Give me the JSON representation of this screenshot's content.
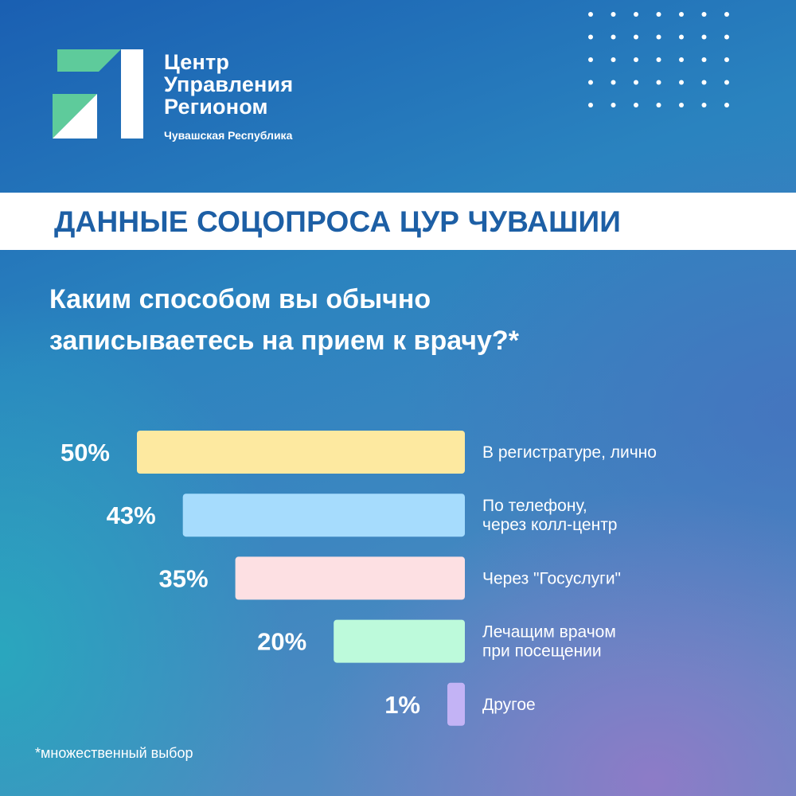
{
  "brand": {
    "line1": "Центр",
    "line2": "Управления",
    "line3": "Регионом",
    "subtitle": "Чувашская Республика"
  },
  "banner": {
    "title": "ДАННЫЕ СОЦОПРОСА ЦУР ЧУВАШИИ"
  },
  "question": {
    "line1": "Каким способом вы обычно",
    "line2": "записываетесь на прием к врачу?*"
  },
  "footnote": "*множественный выбор",
  "colors": {
    "logo_green": "#5ecb9b",
    "banner_text": "#1d5fa5",
    "bar_yellow": "#fde9a0",
    "bar_blue": "#a6dcfd",
    "bar_pink": "#fde0e3",
    "bar_mint": "#bdfadb",
    "bar_violet": "#c3b3f5"
  },
  "chart_data": {
    "type": "bar",
    "orientation": "horizontal",
    "unit": "%",
    "categories": [
      [
        "В регистратуре, лично"
      ],
      [
        "По телефону,",
        "через колл-центр"
      ],
      [
        "Через \"Госуслуги\""
      ],
      [
        "Лечащим врачом",
        "при посещении"
      ],
      [
        "Другое"
      ]
    ],
    "values": [
      50,
      43,
      35,
      20,
      1
    ],
    "value_labels": [
      "50%",
      "43%",
      "35%",
      "20%",
      "1%"
    ],
    "bar_colors": [
      "#fde9a0",
      "#a6dcfd",
      "#fde0e3",
      "#bdfadb",
      "#c3b3f5"
    ],
    "xlim": [
      0,
      50
    ],
    "grid": false,
    "legend": "none"
  }
}
